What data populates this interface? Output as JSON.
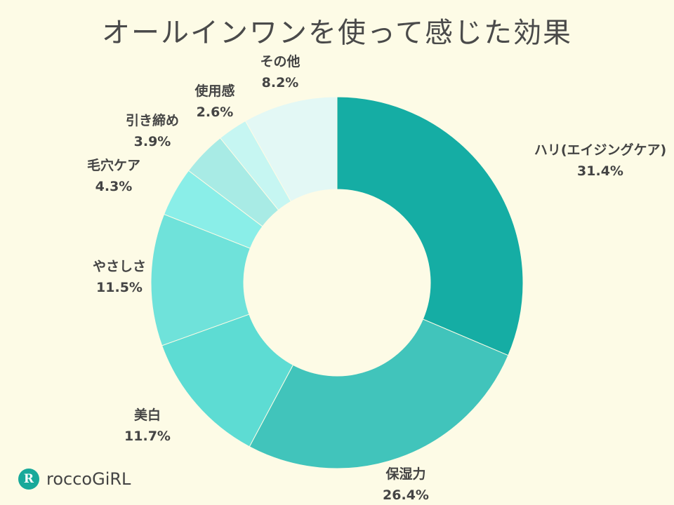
{
  "chart_data": {
    "type": "pie",
    "title": "オールインワンを使って感じた効果",
    "unit": "%",
    "slices": [
      {
        "name": "ハリ(エイジングケア)",
        "value": 31.4,
        "value_label": "31.4%",
        "color": "#15ada4"
      },
      {
        "name": "保湿力",
        "value": 26.4,
        "value_label": "26.4%",
        "color": "#41c4bb"
      },
      {
        "name": "美白",
        "value": 11.7,
        "value_label": "11.7%",
        "color": "#5ddcd3"
      },
      {
        "name": "やさしさ",
        "value": 11.5,
        "value_label": "11.5%",
        "color": "#6fe2da"
      },
      {
        "name": "毛穴ケア",
        "value": 4.3,
        "value_label": "4.3%",
        "color": "#8aeee8"
      },
      {
        "name": "引き締め",
        "value": 3.9,
        "value_label": "3.9%",
        "color": "#a8ebe5"
      },
      {
        "name": "使用感",
        "value": 2.6,
        "value_label": "2.6%",
        "color": "#c6f6f2"
      },
      {
        "name": "その他",
        "value": 8.2,
        "value_label": "8.2%",
        "color": "#e3f8f5"
      }
    ]
  },
  "logo": {
    "mark": "R",
    "text": "roccoGiRL"
  }
}
